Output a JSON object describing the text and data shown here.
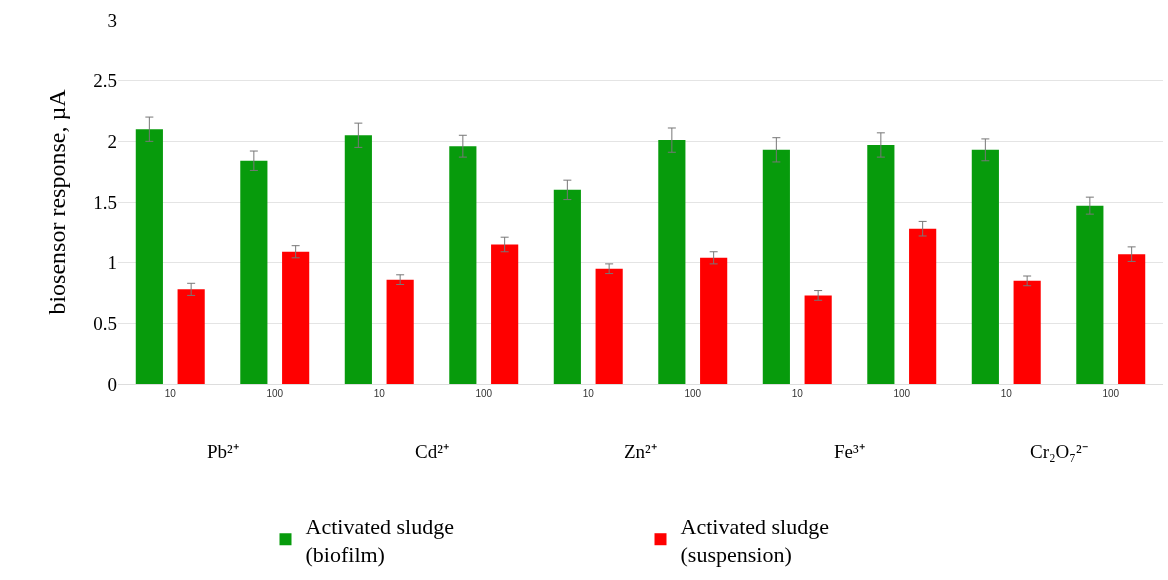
{
  "chart_data": {
    "type": "bar",
    "ylabel": "biosensor response, µA",
    "categories": [
      "10",
      "100",
      "10",
      "100",
      "10",
      "100",
      "10",
      "100",
      "10",
      "100"
    ],
    "series": [
      {
        "name": "Activated sludge\n(biofilm)",
        "color": "#079b0c",
        "values": [
          2.1,
          1.84,
          2.05,
          1.96,
          1.6,
          2.01,
          1.93,
          1.97,
          1.93,
          1.47
        ],
        "errors": [
          0.1,
          0.08,
          0.1,
          0.09,
          0.08,
          0.1,
          0.1,
          0.1,
          0.09,
          0.07
        ]
      },
      {
        "name": "Activated sludge\n(suspension)",
        "color": "#ff0000",
        "values": [
          0.78,
          1.09,
          0.86,
          1.15,
          0.95,
          1.04,
          0.73,
          1.28,
          0.85,
          1.07
        ],
        "errors": [
          0.05,
          0.05,
          0.04,
          0.06,
          0.04,
          0.05,
          0.04,
          0.06,
          0.04,
          0.06
        ]
      }
    ],
    "annotations": [
      "Pb²⁺",
      "Cd²⁺",
      "Zn²⁺",
      "Fe³⁺",
      "Cr₂O₇²⁻"
    ],
    "ylim": [
      0,
      3
    ],
    "yticks": [
      0,
      0.5,
      1,
      1.5,
      2,
      2.5,
      3
    ],
    "grid": "y",
    "legend": "bottom"
  }
}
